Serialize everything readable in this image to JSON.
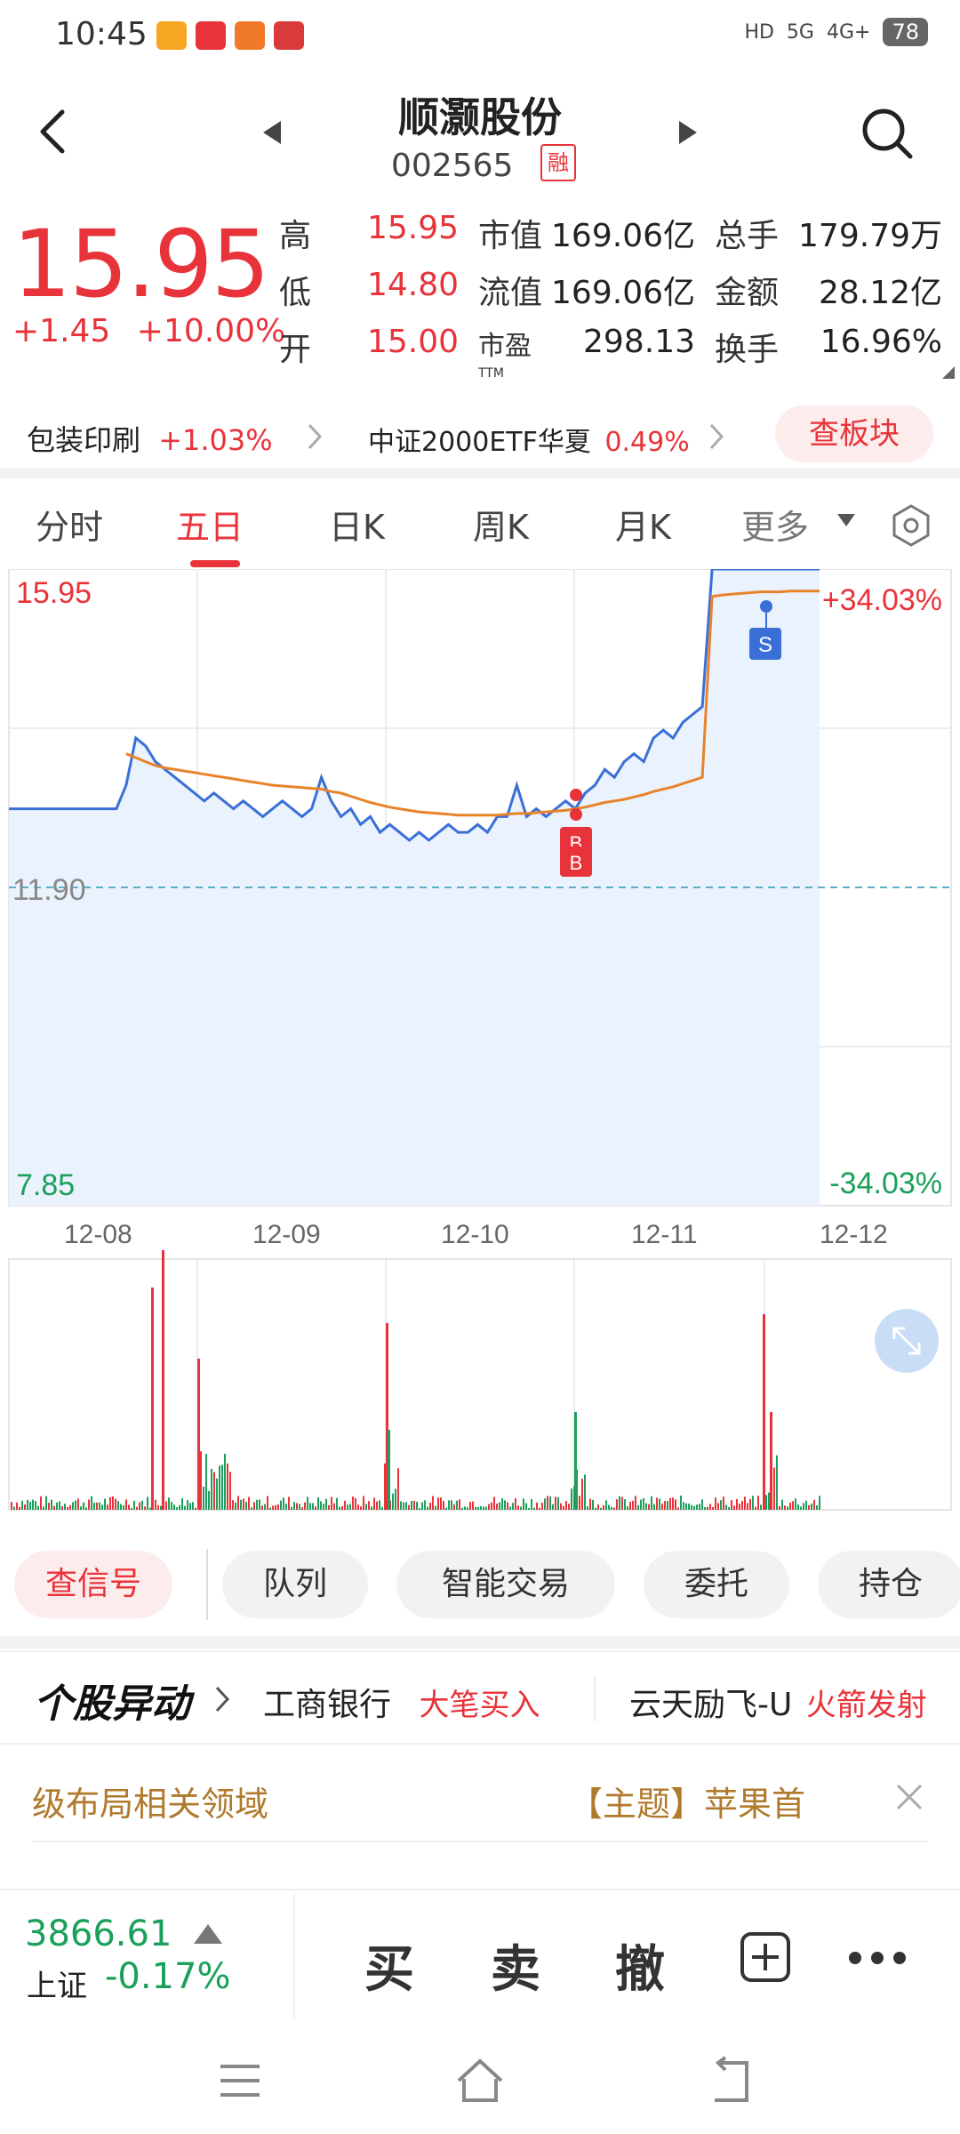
{
  "status": {
    "time": "10:45",
    "signal_hd": "HD",
    "signal_5g": "5G",
    "signal_4g": "4G+",
    "battery": "78"
  },
  "header": {
    "stock_name": "顺灏股份",
    "stock_code": "002565",
    "margin_badge": "融"
  },
  "quote": {
    "price": "15.95",
    "change": "+1.45",
    "change_pct": "+10.00%",
    "stats": [
      {
        "label": "高",
        "value": "15.95",
        "label2": "市值",
        "value2": "169.06亿",
        "label3": "总手",
        "value3": "179.79万"
      },
      {
        "label": "低",
        "value": "14.80",
        "label2": "流值",
        "value2": "169.06亿",
        "label3": "金额",
        "value3": "28.12亿"
      },
      {
        "label": "开",
        "value": "15.00",
        "label2": "市盈",
        "label2_sup": "TTM",
        "value2": "298.13",
        "label3": "换手",
        "value3": "16.96%"
      }
    ]
  },
  "sector": {
    "industry": "包装印刷",
    "industry_chg": "+1.03%",
    "etf": "中证2000ETF华夏",
    "etf_chg": "0.49%",
    "board_button": "查板块"
  },
  "tabs": [
    "分时",
    "五日",
    "日K",
    "周K",
    "月K",
    "更多"
  ],
  "active_tab": "五日",
  "chart_data": {
    "type": "line",
    "y_top": "15.95",
    "y_mid": "11.90",
    "y_bottom": "7.85",
    "pct_top": "+34.03%",
    "pct_bottom": "-34.03%",
    "dates": [
      "12-08",
      "12-09",
      "12-10",
      "12-11",
      "12-12"
    ],
    "markers": {
      "buy": "B",
      "buy2": "B",
      "sell": "S"
    },
    "ylim": [
      7.85,
      15.95
    ],
    "price_series": [
      12.9,
      12.9,
      12.9,
      12.9,
      12.9,
      12.9,
      12.9,
      12.9,
      12.9,
      12.9,
      12.9,
      12.9,
      13.2,
      13.8,
      13.7,
      13.5,
      13.4,
      13.3,
      13.2,
      13.1,
      13.0,
      13.1,
      13.0,
      12.9,
      13.0,
      12.9,
      12.8,
      12.9,
      13.0,
      12.9,
      12.8,
      12.9,
      13.3,
      13.0,
      12.8,
      12.9,
      12.7,
      12.8,
      12.6,
      12.7,
      12.6,
      12.5,
      12.6,
      12.5,
      12.6,
      12.7,
      12.6,
      12.6,
      12.7,
      12.6,
      12.8,
      12.8,
      13.2,
      12.8,
      12.9,
      12.8,
      12.9,
      13.0,
      12.9,
      13.1,
      13.2,
      13.4,
      13.3,
      13.5,
      13.6,
      13.5,
      13.8,
      13.9,
      13.8,
      14.0,
      14.1,
      14.2,
      15.95,
      15.95,
      15.95,
      15.95,
      15.95,
      15.95,
      15.95,
      15.95,
      15.95,
      15.95,
      15.95,
      15.95
    ],
    "avg_series": [
      null,
      null,
      null,
      null,
      null,
      null,
      null,
      null,
      null,
      null,
      null,
      null,
      13.6,
      13.55,
      13.5,
      13.45,
      13.42,
      13.4,
      13.38,
      13.36,
      13.34,
      13.32,
      13.3,
      13.28,
      13.26,
      13.24,
      13.22,
      13.2,
      13.19,
      13.18,
      13.17,
      13.16,
      13.15,
      13.12,
      13.1,
      13.06,
      13.02,
      12.98,
      12.95,
      12.92,
      12.9,
      12.88,
      12.86,
      12.85,
      12.84,
      12.83,
      12.82,
      12.82,
      12.82,
      12.82,
      12.82,
      12.83,
      12.84,
      12.84,
      12.85,
      12.86,
      12.87,
      12.88,
      12.9,
      12.92,
      12.95,
      12.98,
      13.0,
      13.02,
      13.05,
      13.08,
      13.12,
      13.15,
      13.18,
      13.22,
      13.26,
      13.3,
      15.6,
      15.62,
      15.63,
      15.64,
      15.65,
      15.66,
      15.66,
      15.66,
      15.67,
      15.67,
      15.67,
      15.67
    ]
  },
  "actions": [
    "查信号",
    "队列",
    "智能交易",
    "委托",
    "持仓"
  ],
  "news": {
    "title": "个股异动",
    "item1_name": "工商银行",
    "item1_tag": "大笔买入",
    "item2_name": "云天励飞-U",
    "item2_tag": "火箭发射"
  },
  "theme": {
    "left_text": "级布局相关领域",
    "right_text": "【主题】苹果首"
  },
  "bottom": {
    "index_value": "3866.61",
    "index_name": "上证",
    "index_change": "-0.17%",
    "buy": "买",
    "sell": "卖",
    "cancel": "撤"
  },
  "colors": {
    "up": "#e8333a",
    "down": "#1aa05a",
    "price_line": "#3a6fd8",
    "avg_line": "#e8832a",
    "fill": "#eaf2fd"
  }
}
